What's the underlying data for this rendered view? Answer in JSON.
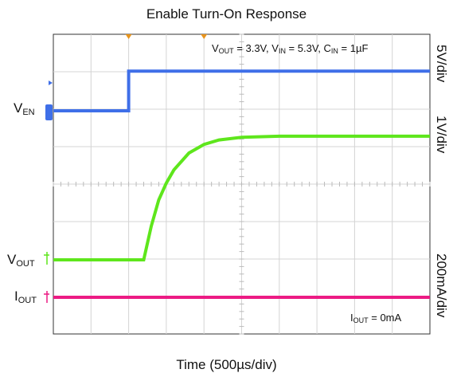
{
  "title": "Enable Turn-On Response",
  "xlabel": "Time (500µs/div)",
  "channel_labels": {
    "ven": {
      "main": "V",
      "sub": "EN"
    },
    "vout": {
      "main": "V",
      "sub": "OUT"
    },
    "iout": {
      "main": "I",
      "sub": "OUT"
    }
  },
  "scales": {
    "ven": "5V/div",
    "vout": "1V/div",
    "iout": "200mA/div"
  },
  "annotation_top": {
    "p1": "V",
    "s1": "OUT",
    "t1": " = 3.3V, V",
    "s2": "IN",
    "t2": " = 5.3V, C",
    "s3": "IN",
    "t3": " = 1µF"
  },
  "annotation_bottom": {
    "main": "I",
    "sub": "OUT",
    "rest": " = 0mA"
  },
  "colors": {
    "ven": "#3f6fe8",
    "vout": "#5ee61c",
    "iout": "#ec1b84",
    "marker": "#e8941c"
  },
  "chart_data": {
    "type": "line",
    "title": "Enable Turn-On Response",
    "xlabel": "Time (500µs/div)",
    "x_unit": "µs",
    "xlim": [
      0,
      5000
    ],
    "divisions": {
      "x": 10,
      "y": 8
    },
    "grid": true,
    "series": [
      {
        "name": "VEN",
        "scale": "5V/div",
        "unit": "V",
        "x": [
          0,
          1000,
          1000,
          5000
        ],
        "y": [
          0,
          0,
          5.3,
          5.3
        ]
      },
      {
        "name": "VOUT",
        "scale": "1V/div",
        "unit": "V",
        "x": [
          0,
          1200,
          1300,
          1400,
          1500,
          1600,
          1800,
          2000,
          2200,
          2500,
          3000,
          5000
        ],
        "y": [
          0,
          0,
          0.9,
          1.6,
          2.05,
          2.4,
          2.85,
          3.08,
          3.2,
          3.27,
          3.3,
          3.3
        ]
      },
      {
        "name": "IOUT",
        "scale": "200mA/div",
        "unit": "mA",
        "x": [
          0,
          5000
        ],
        "y": [
          0,
          0
        ]
      }
    ]
  }
}
